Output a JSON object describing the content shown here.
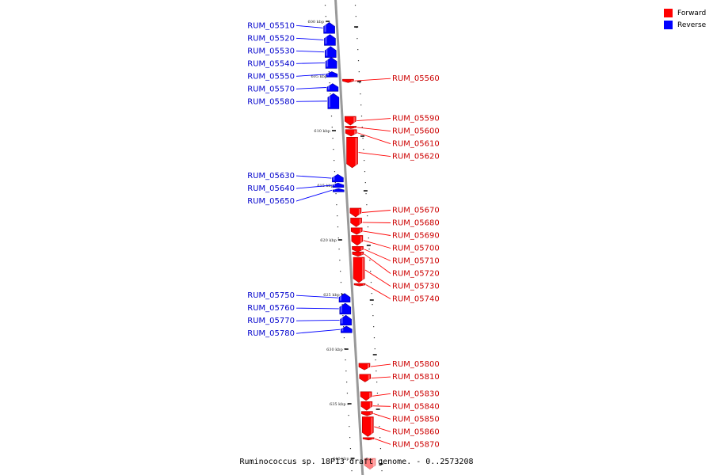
{
  "legend": {
    "forward": {
      "label": "Forward",
      "color": "#ff0000"
    },
    "reverse": {
      "label": "Reverse",
      "color": "#0000ff"
    }
  },
  "caption": "Ruminococcus sp. 18P13 draft genome. - 0..2573208",
  "axis": {
    "unit": "kbp",
    "ticks": [
      {
        "value": 600,
        "label": "600 kbp"
      },
      {
        "value": 605,
        "label": "605 kbp"
      },
      {
        "value": 610,
        "label": "610 kbp"
      },
      {
        "value": 615,
        "label": "615 kbp"
      },
      {
        "value": 620,
        "label": "620 kbp"
      },
      {
        "value": 625,
        "label": "625 kbp"
      },
      {
        "value": 630,
        "label": "630 kbp"
      },
      {
        "value": 635,
        "label": "635 kbp"
      },
      {
        "value": 640,
        "label": "640 kbp"
      }
    ]
  },
  "genes": [
    {
      "name": "RUM_05510",
      "strand": "reverse",
      "start": 600.1,
      "end": 601.1
    },
    {
      "name": "RUM_05520",
      "strand": "reverse",
      "start": 601.2,
      "end": 602.2
    },
    {
      "name": "RUM_05530",
      "strand": "reverse",
      "start": 602.3,
      "end": 603.3
    },
    {
      "name": "RUM_05540",
      "strand": "reverse",
      "start": 603.3,
      "end": 604.3
    },
    {
      "name": "RUM_05550",
      "strand": "reverse",
      "start": 604.6,
      "end": 605.1
    },
    {
      "name": "RUM_05560",
      "strand": "forward",
      "start": 605.3,
      "end": 605.6
    },
    {
      "name": "RUM_05570",
      "strand": "reverse",
      "start": 605.7,
      "end": 606.4
    },
    {
      "name": "RUM_05580",
      "strand": "reverse",
      "start": 606.6,
      "end": 608.0
    },
    {
      "name": "RUM_05590",
      "strand": "forward",
      "start": 608.7,
      "end": 609.5
    },
    {
      "name": "RUM_05600",
      "strand": "forward",
      "start": 609.6,
      "end": 609.8
    },
    {
      "name": "RUM_05610",
      "strand": "forward",
      "start": 609.9,
      "end": 610.5
    },
    {
      "name": "RUM_05620",
      "strand": "forward",
      "start": 610.6,
      "end": 613.4
    },
    {
      "name": "RUM_05630",
      "strand": "reverse",
      "start": 614.0,
      "end": 614.7
    },
    {
      "name": "RUM_05640",
      "strand": "reverse",
      "start": 614.8,
      "end": 615.2
    },
    {
      "name": "RUM_05650",
      "strand": "reverse",
      "start": 615.3,
      "end": 615.6
    },
    {
      "name": "RUM_05670",
      "strand": "forward",
      "start": 617.1,
      "end": 617.9
    },
    {
      "name": "RUM_05680",
      "strand": "forward",
      "start": 618.0,
      "end": 618.8
    },
    {
      "name": "RUM_05690",
      "strand": "forward",
      "start": 618.9,
      "end": 619.5
    },
    {
      "name": "RUM_05700",
      "strand": "forward",
      "start": 619.6,
      "end": 620.5
    },
    {
      "name": "RUM_05710",
      "strand": "forward",
      "start": 620.6,
      "end": 621.1
    },
    {
      "name": "RUM_05720",
      "strand": "forward",
      "start": 621.1,
      "end": 621.5
    },
    {
      "name": "RUM_05730",
      "strand": "forward",
      "start": 621.6,
      "end": 623.9
    },
    {
      "name": "RUM_05740",
      "strand": "forward",
      "start": 624.0,
      "end": 624.2
    },
    {
      "name": "RUM_05750",
      "strand": "reverse",
      "start": 624.9,
      "end": 625.7
    },
    {
      "name": "RUM_05760",
      "strand": "reverse",
      "start": 625.8,
      "end": 626.8
    },
    {
      "name": "RUM_05770",
      "strand": "reverse",
      "start": 626.9,
      "end": 627.8
    },
    {
      "name": "RUM_05780",
      "strand": "reverse",
      "start": 627.9,
      "end": 628.5
    },
    {
      "name": "RUM_05800",
      "strand": "forward",
      "start": 631.3,
      "end": 631.9
    },
    {
      "name": "RUM_05810",
      "strand": "forward",
      "start": 632.3,
      "end": 633.0
    },
    {
      "name": "RUM_05830",
      "strand": "forward",
      "start": 633.9,
      "end": 634.7
    },
    {
      "name": "RUM_05840",
      "strand": "forward",
      "start": 634.8,
      "end": 635.6
    },
    {
      "name": "RUM_05850",
      "strand": "forward",
      "start": 635.7,
      "end": 636.1
    },
    {
      "name": "RUM_05860",
      "strand": "forward",
      "start": 636.2,
      "end": 638.0
    },
    {
      "name": "RUM_05870",
      "strand": "forward",
      "start": 638.1,
      "end": 638.3
    },
    {
      "name": "",
      "strand": "forward",
      "start": 640.0,
      "end": 641.0
    }
  ]
}
